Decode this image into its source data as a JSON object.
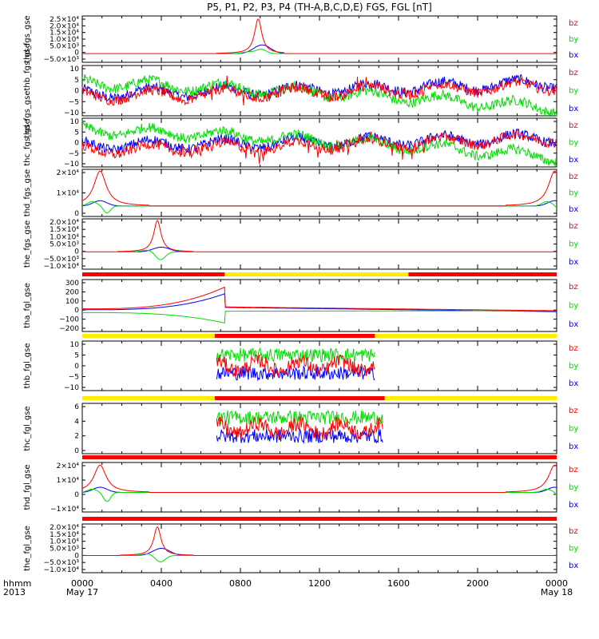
{
  "title": "P5, P1, P2, P3, P4 (TH-A,B,C,D,E) FGS, FGL [nT]",
  "colors": {
    "bx": "#0000ff",
    "by": "#00dd00",
    "bz": "#ff0000",
    "bar_red": "#ff0000",
    "bar_yellow": "#ffee00",
    "axis": "#000000"
  },
  "time_axis": {
    "row_label_1": "hhmm",
    "row_label_2": "2013",
    "ticks": [
      {
        "t": 0,
        "label": "0000",
        "sub": "May 17"
      },
      {
        "t": 4,
        "label": "0400",
        "sub": ""
      },
      {
        "t": 8,
        "label": "0800",
        "sub": ""
      },
      {
        "t": 12,
        "label": "1200",
        "sub": ""
      },
      {
        "t": 16,
        "label": "1600",
        "sub": ""
      },
      {
        "t": 20,
        "label": "2000",
        "sub": ""
      },
      {
        "t": 24,
        "label": "0000",
        "sub": "May 18"
      }
    ]
  },
  "chart_data": [
    {
      "type": "line",
      "panel": 1,
      "ylabel": "thd_fgs_gse",
      "ylim": [
        -6000,
        26000
      ],
      "ytick_labels": [
        "2.5×10⁴",
        "2.0×10⁴",
        "1.5×10⁴",
        "1.0×10⁴",
        "5.0×10³",
        "0",
        "−5.0×10³"
      ],
      "legend": [
        "bz",
        "by",
        "bx"
      ],
      "shape": "spike",
      "peak_t": 8.9,
      "span": [
        6.8,
        10.2
      ],
      "peak": {
        "bz": 24000,
        "by": 3000,
        "bx": 6000
      }
    },
    {
      "type": "line",
      "panel": 2,
      "ylabel": "thd_fgs_gsethb_fgs_gse",
      "ylim": [
        -10,
        10
      ],
      "ytick_labels": [
        "10",
        "5",
        "0",
        "−5",
        "−10"
      ],
      "legend": [
        "bz",
        "by",
        "bx"
      ],
      "shape": "noisy",
      "levels": {
        "bx": [
          -1,
          3
        ],
        "by": [
          3,
          -7
        ],
        "bz": [
          -2,
          2
        ]
      }
    },
    {
      "type": "line",
      "panel": 3,
      "ylabel": "thc_fgs_gse",
      "ylim": [
        -10,
        10
      ],
      "ytick_labels": [
        "10",
        "5",
        "0",
        "−5",
        "−10"
      ],
      "legend": [
        "bz",
        "by",
        "bx"
      ],
      "shape": "noisy",
      "levels": {
        "bx": [
          -1,
          2
        ],
        "by": [
          5,
          -6
        ],
        "bz": [
          -3,
          2
        ]
      }
    },
    {
      "type": "line",
      "panel": 4,
      "ylabel": "thd_fgs_gse",
      "ylim": [
        -6000,
        21000
      ],
      "ytick_labels": [
        "2×10⁴",
        "1×10⁴",
        "0"
      ],
      "legend": [
        "bz",
        "by",
        "bx"
      ],
      "shape": "double-spike",
      "peaks_t": [
        0.9,
        23.9
      ],
      "peak": {
        "bz": 20000,
        "by": -4000,
        "bx": 3000
      }
    },
    {
      "type": "line",
      "panel": 5,
      "ylabel": "the_fgs_gse",
      "ylim": [
        -11000,
        21000
      ],
      "ytick_labels": [
        "2.0×10⁴",
        "1.5×10⁴",
        "1.0×10⁴",
        "5.0×10³",
        "0",
        "−5.0×10³",
        "−1.0×10⁴"
      ],
      "legend": [
        "bz",
        "by",
        "bx"
      ],
      "shape": "spike",
      "peak_t": 3.8,
      "span": [
        1.8,
        5.6
      ],
      "peak": {
        "bz": 20000,
        "by": -5000,
        "bx": 3000
      }
    },
    {
      "type": "line",
      "panel": 6,
      "ylabel": "tha_fgl_gse",
      "ylim": [
        -220,
        330
      ],
      "ytick_labels": [
        "300",
        "200",
        "100",
        "0",
        "−100",
        "−200"
      ],
      "legend": [
        "bz",
        "by",
        "bx"
      ],
      "shape": "ramp",
      "bar_top": [
        [
          "red",
          0,
          7.2
        ],
        [
          "yellow",
          7.2,
          16.5
        ],
        [
          "red",
          16.5,
          24
        ]
      ]
    },
    {
      "type": "line",
      "panel": 7,
      "ylabel": "thb_fgl_gse",
      "ylim": [
        -12,
        12
      ],
      "ytick_labels": [
        "10",
        "5",
        "0",
        "−5",
        "−10"
      ],
      "legend": [
        "bz",
        "by",
        "bx"
      ],
      "shape": "noisy-window",
      "window": [
        6.8,
        14.8
      ],
      "bar_top": [
        [
          "yellow",
          0,
          6.7
        ],
        [
          "red",
          6.7,
          14.8
        ],
        [
          "yellow",
          14.8,
          24
        ]
      ]
    },
    {
      "type": "line",
      "panel": 8,
      "ylabel": "thc_fgl_gse",
      "ylim": [
        -0.8,
        6.5
      ],
      "ytick_labels": [
        "6",
        "4",
        "2",
        "0"
      ],
      "legend": [
        "bz",
        "by",
        "bx"
      ],
      "shape": "noisy-window",
      "window": [
        6.8,
        15.2
      ],
      "bar_top": [
        [
          "yellow",
          0,
          6.7
        ],
        [
          "red",
          6.7,
          15.3
        ],
        [
          "yellow",
          15.3,
          24
        ]
      ]
    },
    {
      "type": "line",
      "panel": 9,
      "ylabel": "thd_fgl_gse",
      "ylim": [
        -15000,
        23000
      ],
      "ytick_labels": [
        "2×10⁴",
        "1×10⁴",
        "0",
        "−1×10⁴"
      ],
      "legend": [
        "bz",
        "by",
        "bx"
      ],
      "shape": "double-spike",
      "peaks_t": [
        0.9,
        23.9
      ],
      "peak": {
        "bz": 21000,
        "by": -7000,
        "bx": 4000
      },
      "bar_top": [
        [
          "red",
          0,
          24
        ]
      ]
    },
    {
      "type": "line",
      "panel": 10,
      "ylabel": "the_fgl_gse",
      "ylim": [
        -12000,
        22000
      ],
      "ytick_labels": [
        "2.0×10⁴",
        "1.5×10⁴",
        "1.0×10⁴",
        "5.0×10³",
        "0",
        "−5.0×10³",
        "−1.0×10⁴"
      ],
      "legend": [
        "bz",
        "by",
        "bx"
      ],
      "shape": "spike",
      "peak_t": 3.8,
      "span": [
        1.9,
        5.6
      ],
      "peak": {
        "bz": 20000,
        "by": -4500,
        "bx": 5000
      },
      "bar_top": [
        [
          "red",
          0,
          24
        ]
      ]
    }
  ]
}
